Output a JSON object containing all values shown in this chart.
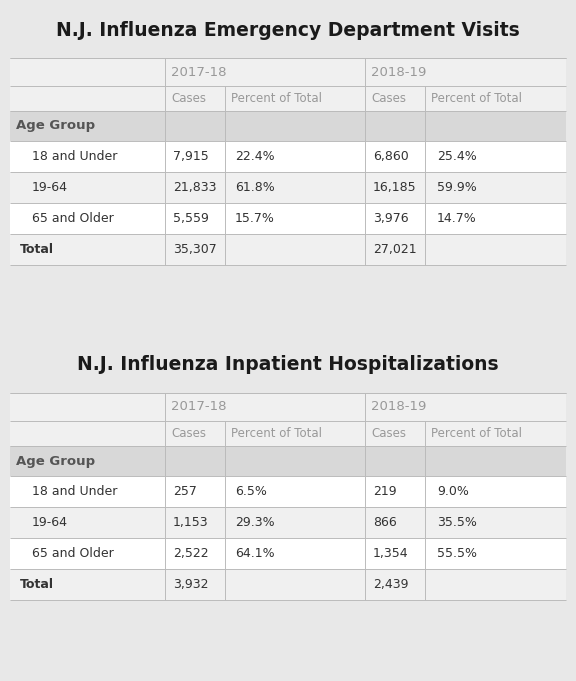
{
  "table1_title": "N.J. Influenza Emergency Department Visits",
  "table2_title": "N.J. Influenza Inpatient Hospitalizations",
  "season_headers": [
    "2017-18",
    "2018-19"
  ],
  "col_headers": [
    "Cases",
    "Percent of Total",
    "Cases",
    "Percent of Total"
  ],
  "age_group_label": "Age Group",
  "row_labels": [
    "18 and Under",
    "19-64",
    "65 and Older",
    "Total"
  ],
  "table1_data": [
    [
      "7,915",
      "22.4%",
      "6,860",
      "25.4%"
    ],
    [
      "21,833",
      "61.8%",
      "16,185",
      "59.9%"
    ],
    [
      "5,559",
      "15.7%",
      "3,976",
      "14.7%"
    ],
    [
      "35,307",
      "",
      "27,021",
      ""
    ]
  ],
  "table2_data": [
    [
      "257",
      "6.5%",
      "219",
      "9.0%"
    ],
    [
      "1,153",
      "29.3%",
      "866",
      "35.5%"
    ],
    [
      "2,522",
      "64.1%",
      "1,354",
      "55.5%"
    ],
    [
      "3,932",
      "",
      "2,439",
      ""
    ]
  ],
  "bg_color": "#e8e8e8",
  "white_color": "#ffffff",
  "light_gray": "#f0f0f0",
  "age_group_bg": "#d8d8d8",
  "header_text_color": "#999999",
  "title_color": "#1a1a1a",
  "age_group_color": "#555555",
  "body_text_color": "#333333",
  "line_color": "#bbbbbb",
  "title_fontsize": 13.5,
  "season_fontsize": 9.5,
  "header_fontsize": 8.5,
  "body_fontsize": 9.0,
  "age_group_fontsize": 9.5
}
